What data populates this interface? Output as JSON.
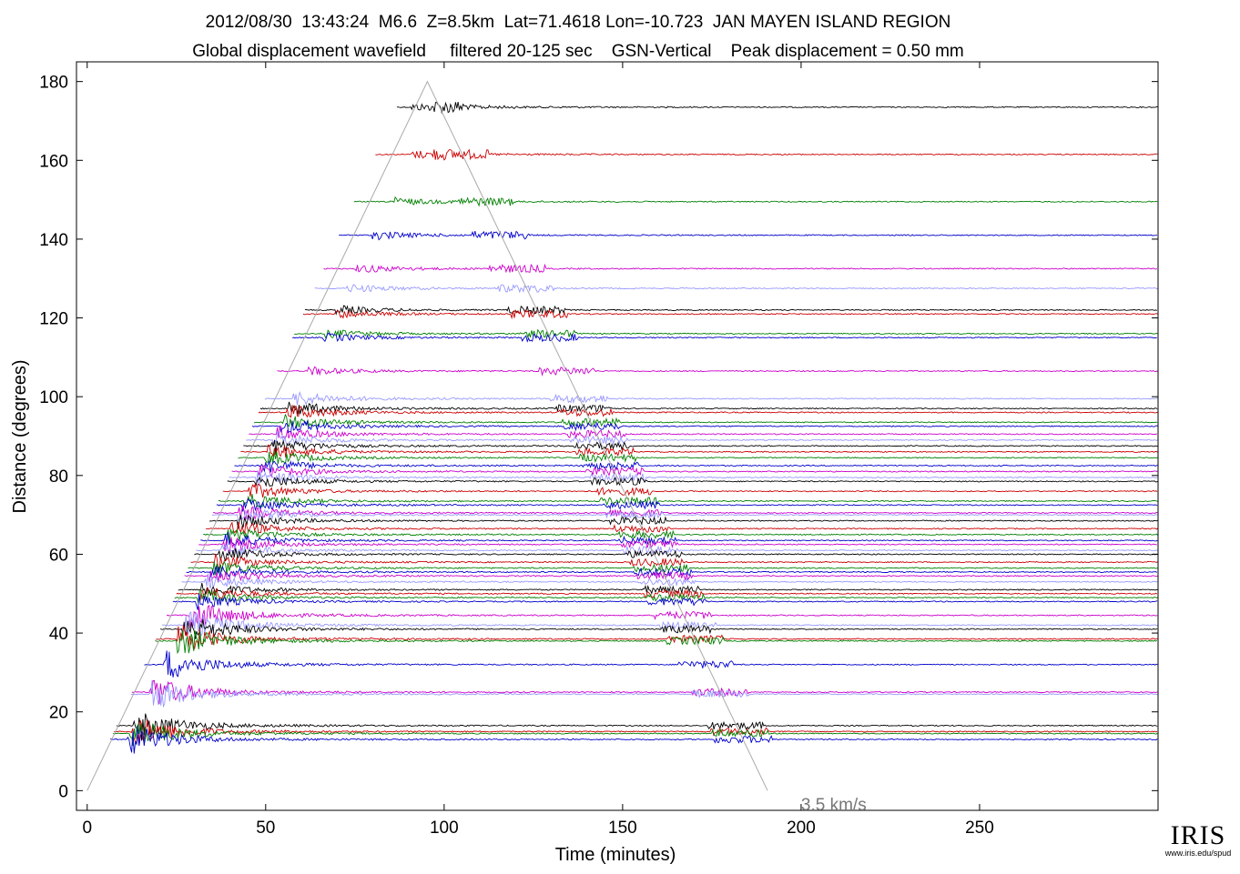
{
  "titles": {
    "line1": "2012/08/30  13:43:24  M6.6  Z=8.5km  Lat=71.4618 Lon=-10.723  JAN MAYEN ISLAND REGION",
    "line2": "Global displacement wavefield     filtered 20-125 sec    GSN-Vertical    Peak displacement = 0.50 mm"
  },
  "logo": {
    "text": "IRIS",
    "url": "www.iris.edu/spud"
  },
  "colors": {
    "black": "#000000",
    "red": "#cc0000",
    "green": "#008000",
    "blue": "#0000cc",
    "magenta": "#cc00cc",
    "lavender": "#9999ff",
    "gray": "#555555",
    "guide": "#aaaaaa"
  },
  "chart_data": {
    "type": "line",
    "xlabel": "Time (minutes)",
    "ylabel": "Distance (degrees)",
    "xlim": [
      -3,
      300
    ],
    "ylim": [
      -5,
      185
    ],
    "xticks": [
      0,
      50,
      100,
      150,
      200,
      250
    ],
    "yticks": [
      0,
      20,
      40,
      60,
      80,
      100,
      120,
      140,
      160,
      180
    ],
    "grid": false,
    "annotation": {
      "text": "3.5 km/s",
      "x": 200,
      "y": -2
    },
    "velocity_guide": [
      [
        0,
        0
      ],
      [
        95.3,
        180
      ],
      [
        190.6,
        0
      ]
    ],
    "trace_colors": [
      "black",
      "red",
      "green",
      "blue",
      "magenta",
      "lavender"
    ],
    "trace_distances_deg": [
      173.5,
      161.5,
      149.5,
      141,
      132.5,
      127.5,
      122,
      121,
      116,
      115,
      106.5,
      99.5,
      97,
      96,
      93.5,
      92.5,
      90.5,
      89,
      87.5,
      86,
      84.5,
      82.5,
      81,
      79.5,
      78.5,
      76,
      73.5,
      72.5,
      70.5,
      70,
      68.5,
      66.5,
      65,
      63.5,
      62.5,
      61,
      60,
      58,
      56.5,
      55.5,
      54.5,
      53,
      51,
      50,
      49,
      48,
      44.5,
      42,
      41,
      38.5,
      38,
      32,
      25,
      24.5,
      16.5,
      15,
      14.5,
      13
    ]
  }
}
